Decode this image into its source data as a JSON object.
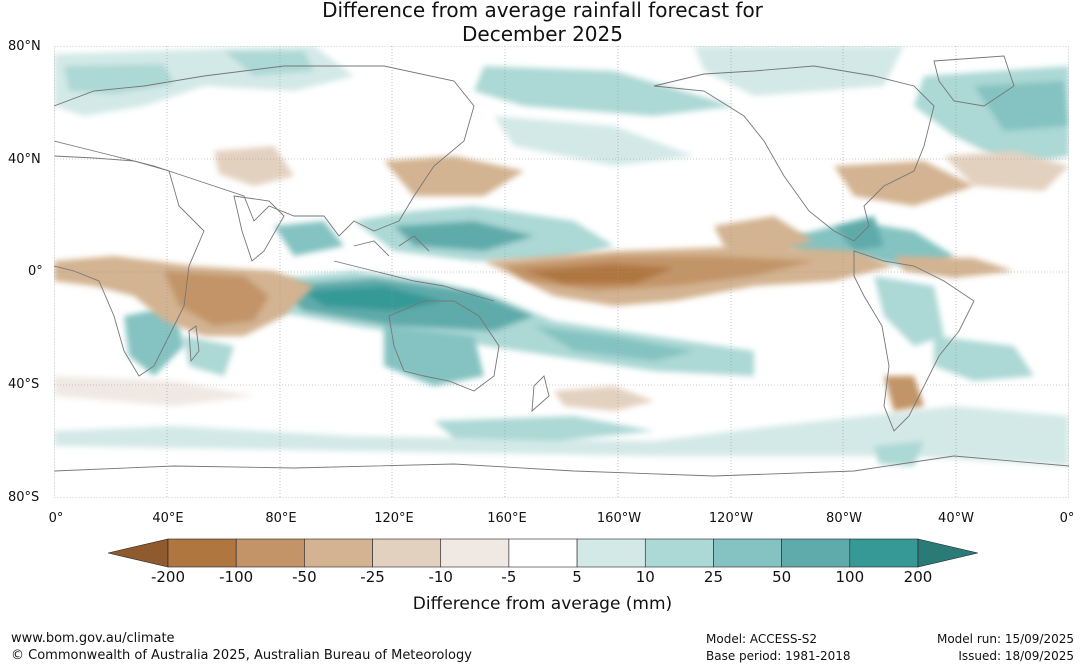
{
  "title_line1": "Difference from average rainfall forecast for",
  "title_line2": "December 2025",
  "map": {
    "type": "filled-contour-map",
    "projection": "equirectangular",
    "lon_range": [
      0,
      360
    ],
    "lat_range": [
      -80,
      80
    ],
    "grid": true,
    "lat_labels": [
      "80°N",
      "40°N",
      "0°",
      "40°S",
      "80°S"
    ],
    "lon_labels": [
      "0°",
      "40°E",
      "80°E",
      "120°E",
      "160°E",
      "160°W",
      "120°W",
      "80°W",
      "40°W",
      "0°"
    ]
  },
  "colorbar": {
    "title": "Difference from average (mm)",
    "ticks": [
      "-200",
      "-100",
      "-50",
      "-25",
      "-10",
      "-5",
      "5",
      "10",
      "25",
      "50",
      "100",
      "200"
    ],
    "colors": [
      "#8f5b2e",
      "#b07640",
      "#c29468",
      "#d3b391",
      "#e3d1c0",
      "#f0e9e3",
      "#ffffff",
      "#d3e9e7",
      "#acd8d5",
      "#84c3c1",
      "#5fabab",
      "#369996",
      "#2a7a78"
    ]
  },
  "footer": {
    "website": "www.bom.gov.au/climate",
    "copyright": "© Commonwealth of Australia 2025, Australian Bureau of Meteorology",
    "model": "Model: ACCESS-S2",
    "base_period": "Base period: 1981-2018",
    "model_run": "Model run: 15/09/2025",
    "issued": "Issued: 18/09/2025"
  }
}
